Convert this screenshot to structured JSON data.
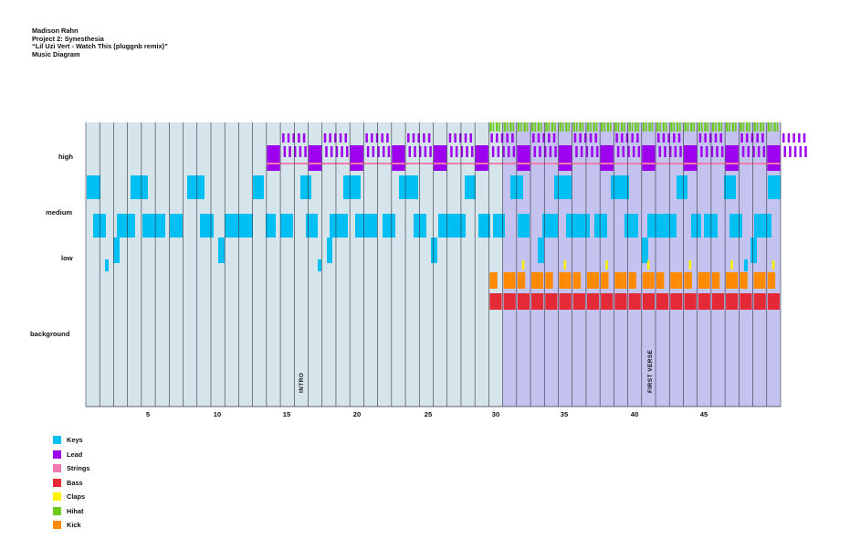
{
  "header": {
    "author": "Madison Rahn",
    "project": "Project 2: Synesthesia",
    "song": "“Lil Uzi Vert - Watch This (pluggnb remix)”",
    "subtitle": "Music Diagram"
  },
  "rows": {
    "high": "high",
    "medium": "medium",
    "low": "low",
    "background": "background"
  },
  "ticks": [
    "5",
    "10",
    "15",
    "20",
    "25",
    "30",
    "35",
    "40",
    "45"
  ],
  "sections": {
    "intro": "INTRO",
    "first_verse": "FIRST VERSE"
  },
  "legend": [
    {
      "label": "Keys",
      "color": "#00bff3"
    },
    {
      "label": "Lead",
      "color": "#9e00f0"
    },
    {
      "label": "Strings",
      "color": "#f17bb0"
    },
    {
      "label": "Bass",
      "color": "#e32a36"
    },
    {
      "label": "Claps",
      "color": "#fff200"
    },
    {
      "label": "Hihat",
      "color": "#6ccb1c"
    },
    {
      "label": "Kick",
      "color": "#ff8a00"
    }
  ],
  "colors": {
    "intro_background": "#d6e5ec",
    "verse_background": "#c4c3f0",
    "bar_line": "#33333f"
  }
}
